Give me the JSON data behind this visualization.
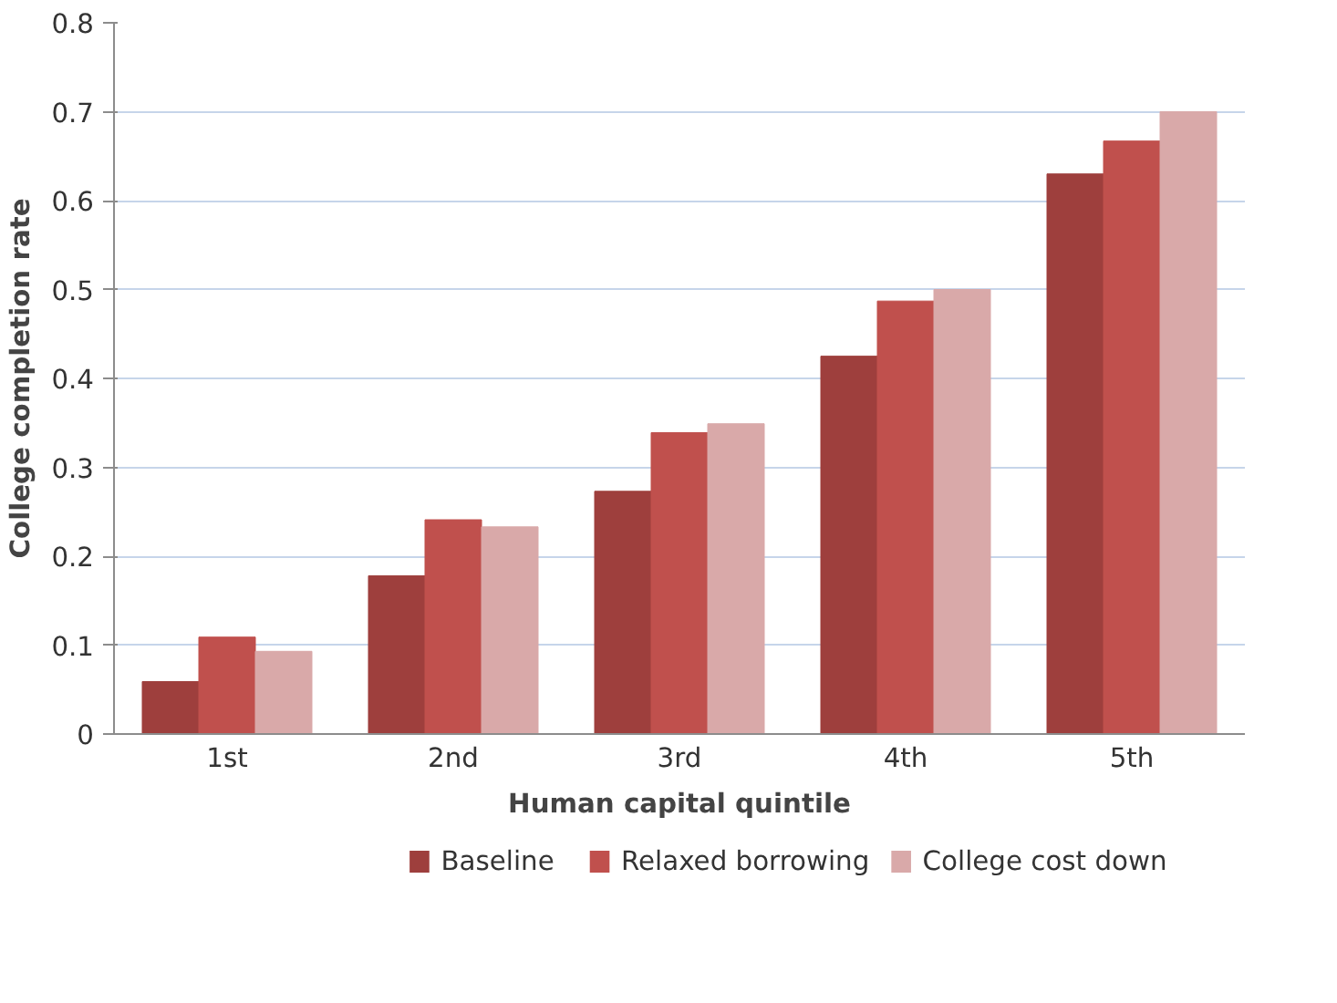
{
  "chart_data": {
    "type": "bar",
    "xlabel": "Human capital quintile",
    "ylabel": "College completion rate",
    "categories": [
      "1st",
      "2nd",
      "3rd",
      "4th",
      "5th"
    ],
    "series": [
      {
        "name": "Baseline",
        "color": "#9e3f3d",
        "values": [
          0.059,
          0.178,
          0.273,
          0.425,
          0.63
        ]
      },
      {
        "name": "Relaxed borrowing",
        "color": "#c0504d",
        "values": [
          0.109,
          0.241,
          0.339,
          0.487,
          0.667
        ]
      },
      {
        "name": "College cost down",
        "color": "#d9a9a9",
        "values": [
          0.093,
          0.233,
          0.349,
          0.5,
          0.7
        ]
      }
    ],
    "ylim": [
      0,
      0.8
    ],
    "yticks": [
      0,
      0.1,
      0.2,
      0.3,
      0.4,
      0.5,
      0.6,
      0.7,
      0.8
    ],
    "grid": "y",
    "legend": "bottom"
  }
}
